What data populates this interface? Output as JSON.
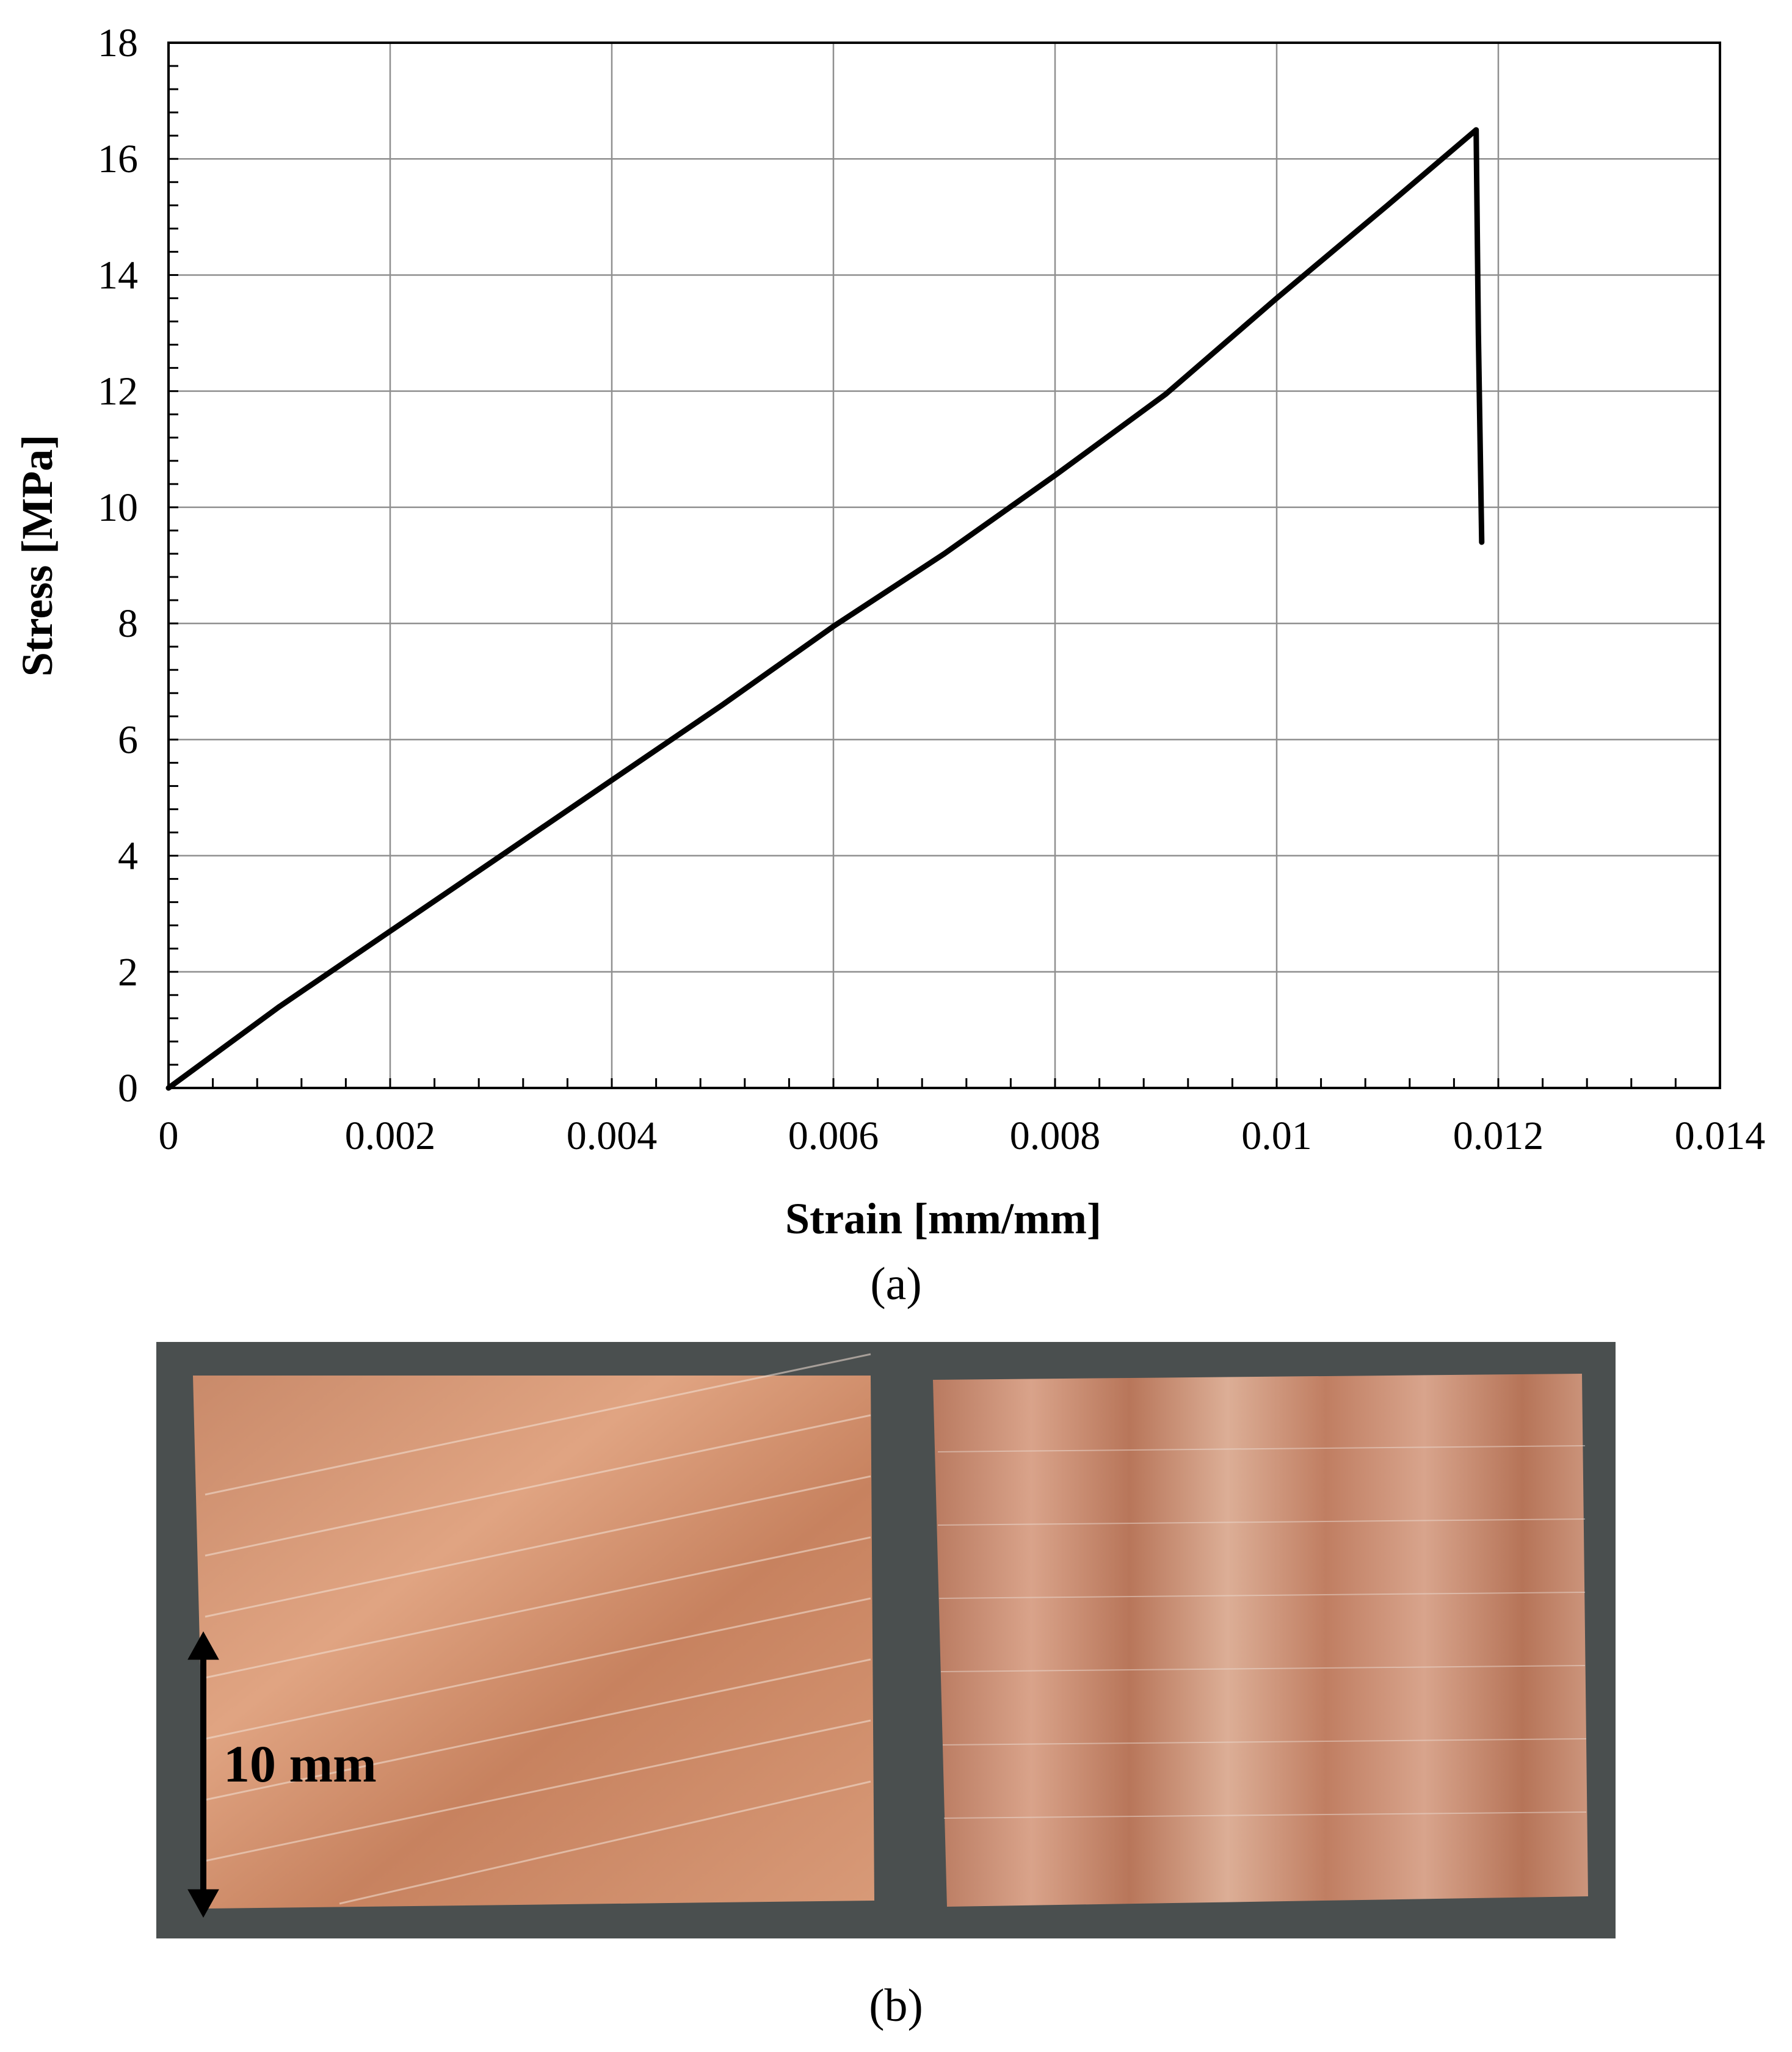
{
  "chart_data": {
    "type": "line",
    "xlabel": "Strain [mm/mm]",
    "ylabel": "Stress [MPa]",
    "xlim": [
      0,
      0.014
    ],
    "ylim": [
      0,
      18
    ],
    "x_ticks": [
      0,
      0.002,
      0.004,
      0.006,
      0.008,
      0.01,
      0.012,
      0.014
    ],
    "x_tick_labels": [
      "0",
      "0.002",
      "0.004",
      "0.006",
      "0.008",
      "0.01",
      "0.012",
      "0.014"
    ],
    "y_ticks": [
      0,
      2,
      4,
      6,
      8,
      10,
      12,
      14,
      16,
      18
    ],
    "y_tick_labels": [
      "0",
      "2",
      "4",
      "6",
      "8",
      "10",
      "12",
      "14",
      "16",
      "18"
    ],
    "grid": true,
    "series": [
      {
        "color": "#000000",
        "x": [
          0,
          0.001,
          0.002,
          0.003,
          0.004,
          0.005,
          0.006,
          0.007,
          0.008,
          0.009,
          0.01,
          0.011,
          0.0118,
          0.01182,
          0.01185
        ],
        "y": [
          0,
          1.4,
          2.7,
          4.0,
          5.3,
          6.6,
          7.95,
          9.2,
          10.55,
          11.95,
          13.6,
          15.2,
          16.5,
          13.0,
          9.4
        ]
      }
    ]
  },
  "figure": {
    "caption_a": "(a)",
    "caption_b": "(b)",
    "scale_bar_label": "10 mm"
  }
}
